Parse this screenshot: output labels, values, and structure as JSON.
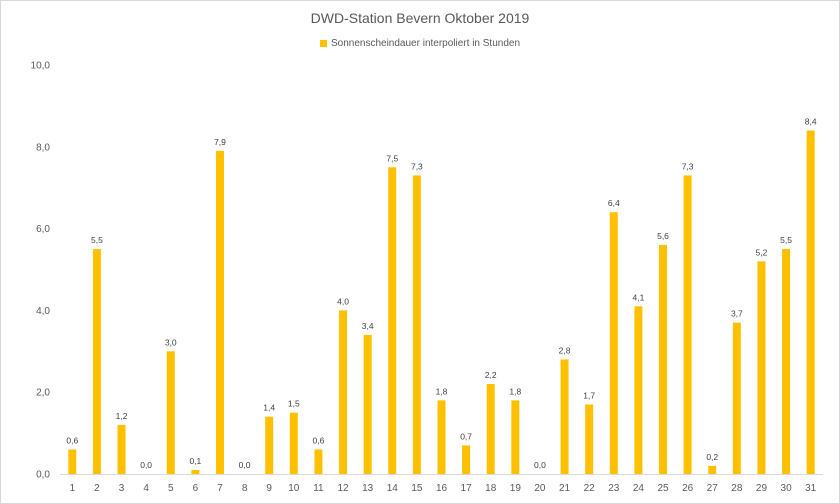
{
  "chart_data": {
    "type": "bar",
    "title": "DWD-Station Bevern Oktober 2019",
    "xlabel": "",
    "ylabel": "",
    "ylim": [
      0,
      10
    ],
    "yticks": [
      "0,0",
      "2,0",
      "4,0",
      "6,0",
      "8,0",
      "10,0"
    ],
    "ytick_values": [
      0,
      2,
      4,
      6,
      8,
      10
    ],
    "categories": [
      "1",
      "2",
      "3",
      "4",
      "5",
      "6",
      "7",
      "8",
      "9",
      "10",
      "11",
      "12",
      "13",
      "14",
      "15",
      "16",
      "17",
      "18",
      "19",
      "20",
      "21",
      "22",
      "23",
      "24",
      "25",
      "26",
      "27",
      "28",
      "29",
      "30",
      "31"
    ],
    "series": [
      {
        "name": "Sonnenscheindauer interpoliert in Stunden",
        "color": "#FFC000",
        "values": [
          0.6,
          5.5,
          1.2,
          0.0,
          3.0,
          0.1,
          7.9,
          0.0,
          1.4,
          1.5,
          0.6,
          4.0,
          3.4,
          7.5,
          7.3,
          1.8,
          0.7,
          2.2,
          1.8,
          0.0,
          2.8,
          1.7,
          6.4,
          4.1,
          5.6,
          7.3,
          0.2,
          3.7,
          5.2,
          5.5,
          8.4
        ],
        "labels": [
          "0,6",
          "5,5",
          "1,2",
          "0,0",
          "3,0",
          "0,1",
          "7,9",
          "0,0",
          "1,4",
          "1,5",
          "0,6",
          "4,0",
          "3,4",
          "7,5",
          "7,3",
          "1,8",
          "0,7",
          "2,2",
          "1,8",
          "0,0",
          "2,8",
          "1,7",
          "6,4",
          "4,1",
          "5,6",
          "7,3",
          "0,2",
          "3,7",
          "5,2",
          "5,5",
          "8,4"
        ]
      }
    ],
    "legend": "top",
    "grid": false
  }
}
